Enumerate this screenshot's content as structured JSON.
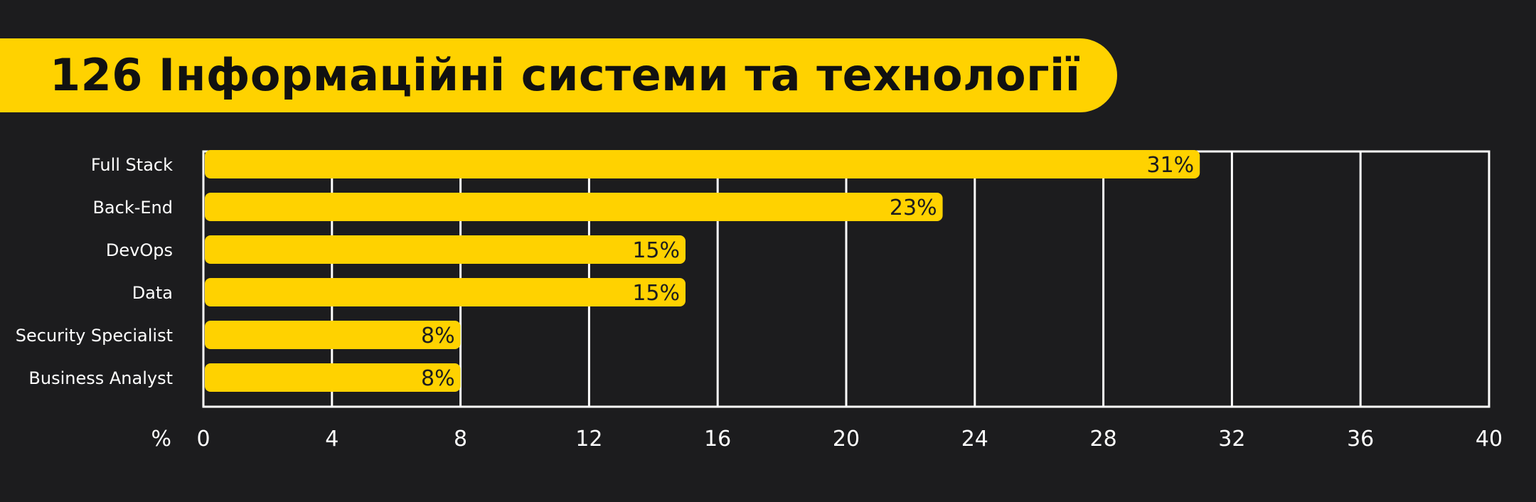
{
  "header": {
    "title": "126 Інформаційні системи та технології"
  },
  "colors": {
    "background": "#1c1c1e",
    "accent": "#ffd200",
    "grid": "#ffffff",
    "text": "#ffffff",
    "bar_label": "#1c1c1e"
  },
  "chart_data": {
    "type": "bar",
    "orientation": "horizontal",
    "categories": [
      "Full Stack",
      "Back-End",
      "DevOps",
      "Data",
      "Security Specialist",
      "Business Analyst"
    ],
    "values": [
      31,
      23,
      15,
      15,
      8,
      8
    ],
    "value_labels": [
      "31%",
      "23%",
      "15%",
      "15%",
      "8%",
      "8%"
    ],
    "title": "126 Інформаційні системи та технології",
    "xlabel": "%",
    "ylabel": "",
    "xlim": [
      0,
      40
    ],
    "x_ticks": [
      "0",
      "4",
      "8",
      "12",
      "16",
      "20",
      "24",
      "28",
      "32",
      "36",
      "40"
    ],
    "grid": true,
    "legend": "none"
  }
}
